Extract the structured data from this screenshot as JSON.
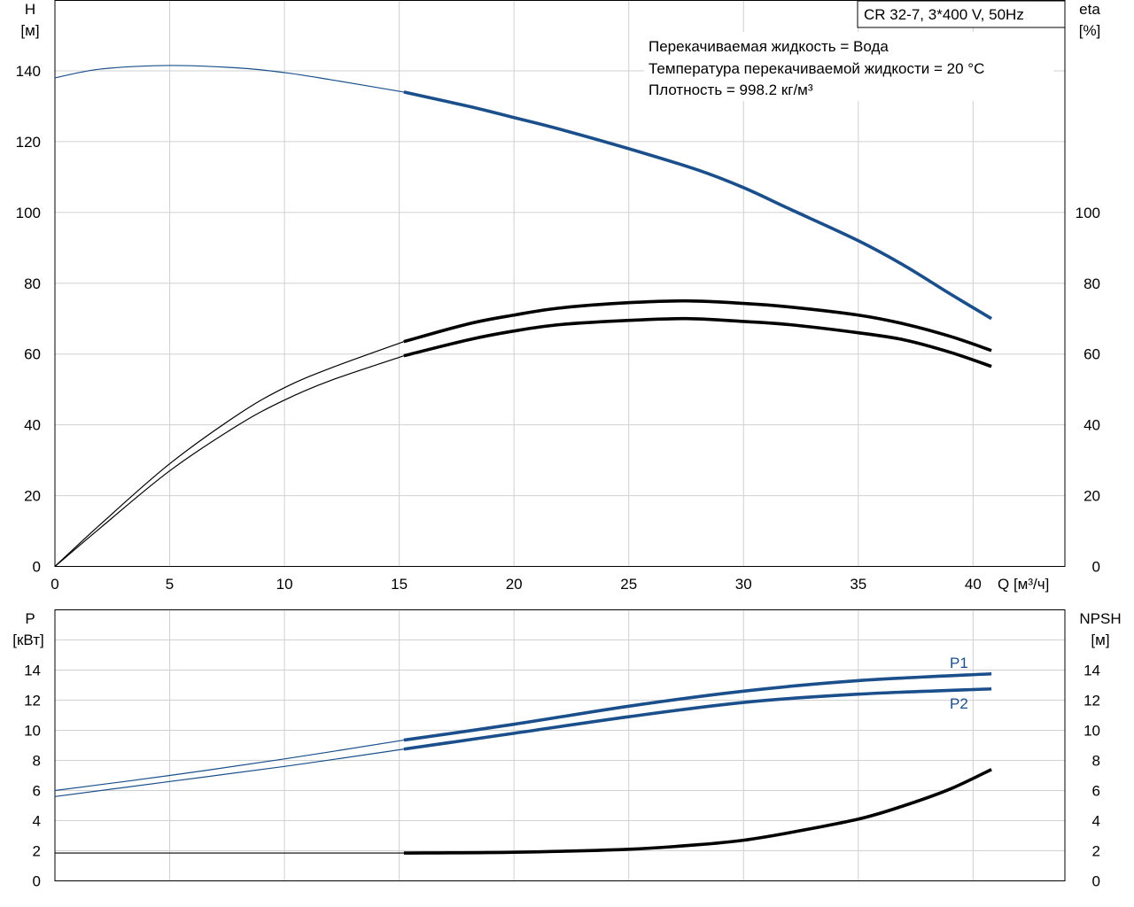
{
  "chart_data": [
    {
      "type": "line",
      "title": "CR 32-7, 3*400 V, 50Hz",
      "annotations": [
        "Перекачиваемая жидкость = Вода",
        "Температура перекачиваемой жидкости = 20 °C",
        "Плотность = 998.2 кг/м³"
      ],
      "xlabel": "Q [м³/ч]",
      "ylabel_left": [
        "H",
        "[м]"
      ],
      "ylabel_right": [
        "eta",
        "[%]"
      ],
      "xlim": [
        0,
        44
      ],
      "ylim_left": [
        0,
        160
      ],
      "ylim_right": [
        0,
        160
      ],
      "x_ticks": [
        "0",
        "5",
        "10",
        "15",
        "20",
        "25",
        "30",
        "35",
        "40"
      ],
      "y_ticks_left": [
        "0",
        "20",
        "40",
        "60",
        "80",
        "100",
        "120",
        "140"
      ],
      "y_ticks_right": [
        "0",
        "20",
        "40",
        "60",
        "80",
        "100"
      ],
      "grid": true,
      "series": [
        {
          "color": "#1a4f8b",
          "axis": "left",
          "points": [
            [
              0,
              138
            ],
            [
              2,
              140.5
            ],
            [
              5,
              141.5
            ],
            [
              8,
              140.8
            ],
            [
              10,
              139.5
            ],
            [
              12,
              137.5
            ],
            [
              15.2,
              134
            ],
            [
              18,
              130
            ],
            [
              20,
              126.8
            ],
            [
              22,
              123.5
            ],
            [
              25,
              118
            ],
            [
              28,
              112
            ],
            [
              30,
              107
            ],
            [
              32,
              101
            ],
            [
              35,
              92
            ],
            [
              37,
              85
            ],
            [
              39,
              77
            ],
            [
              40.8,
              70
            ]
          ]
        },
        {
          "color": "#000000",
          "axis": "right",
          "points": [
            [
              0,
              0
            ],
            [
              2,
              12
            ],
            [
              5,
              29
            ],
            [
              8,
              43
            ],
            [
              10,
              50.5
            ],
            [
              12,
              56
            ],
            [
              15.2,
              63.5
            ],
            [
              18,
              68.5
            ],
            [
              20,
              71
            ],
            [
              22,
              73
            ],
            [
              25,
              74.5
            ],
            [
              27.5,
              75
            ],
            [
              30,
              74.3
            ],
            [
              32,
              73.3
            ],
            [
              35,
              71
            ],
            [
              37,
              68.5
            ],
            [
              39,
              65
            ],
            [
              40.8,
              61
            ]
          ]
        },
        {
          "color": "#000000",
          "axis": "right",
          "points": [
            [
              0,
              0
            ],
            [
              2,
              11
            ],
            [
              5,
              27
            ],
            [
              8,
              40
            ],
            [
              10,
              47
            ],
            [
              12,
              52.5
            ],
            [
              15.2,
              59.5
            ],
            [
              18,
              64
            ],
            [
              20,
              66.5
            ],
            [
              22,
              68.3
            ],
            [
              25,
              69.5
            ],
            [
              27.5,
              70
            ],
            [
              30,
              69.2
            ],
            [
              32,
              68.3
            ],
            [
              35,
              66
            ],
            [
              37,
              64
            ],
            [
              39,
              60.5
            ],
            [
              40.8,
              56.5
            ]
          ]
        }
      ]
    },
    {
      "type": "line",
      "xlim": [
        0,
        44
      ],
      "ylabel_left": [
        "P",
        "[кВт]"
      ],
      "ylabel_right": [
        "NPSH",
        "[м]"
      ],
      "ylim_left": [
        0,
        18
      ],
      "ylim_right": [
        0,
        18
      ],
      "y_ticks_left": [
        "0",
        "2",
        "4",
        "6",
        "8",
        "10",
        "12",
        "14"
      ],
      "y_ticks_right": [
        "0",
        "2",
        "4",
        "6",
        "8",
        "10",
        "12",
        "14"
      ],
      "grid": true,
      "series": [
        {
          "name": "P1",
          "color": "#1a4f8b",
          "axis": "left",
          "points": [
            [
              0,
              6
            ],
            [
              5,
              7
            ],
            [
              10,
              8.1
            ],
            [
              15.2,
              9.35
            ],
            [
              20,
              10.4
            ],
            [
              25,
              11.6
            ],
            [
              30,
              12.6
            ],
            [
              35,
              13.3
            ],
            [
              40.8,
              13.75
            ]
          ]
        },
        {
          "name": "P2",
          "color": "#1a4f8b",
          "axis": "left",
          "points": [
            [
              0,
              5.6
            ],
            [
              5,
              6.6
            ],
            [
              10,
              7.6
            ],
            [
              15.2,
              8.75
            ],
            [
              20,
              9.8
            ],
            [
              25,
              10.9
            ],
            [
              30,
              11.85
            ],
            [
              35,
              12.4
            ],
            [
              40.8,
              12.75
            ]
          ]
        },
        {
          "color": "#000000",
          "axis": "right",
          "points": [
            [
              0,
              1.85
            ],
            [
              10,
              1.85
            ],
            [
              15.2,
              1.85
            ],
            [
              20,
              1.9
            ],
            [
              25,
              2.1
            ],
            [
              28,
              2.4
            ],
            [
              30,
              2.7
            ],
            [
              32,
              3.2
            ],
            [
              35,
              4.1
            ],
            [
              37,
              5
            ],
            [
              39,
              6.1
            ],
            [
              40.8,
              7.4
            ]
          ]
        }
      ]
    }
  ]
}
